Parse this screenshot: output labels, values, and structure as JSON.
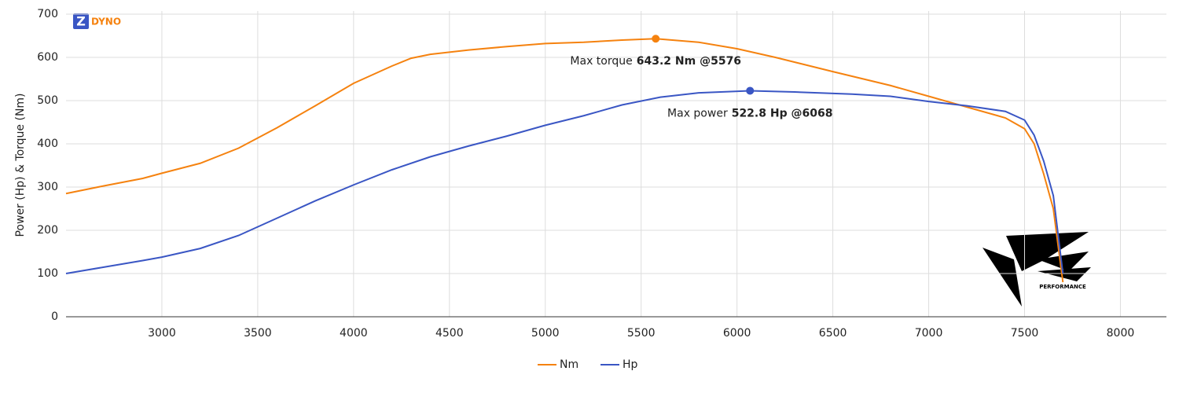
{
  "chart_data": {
    "type": "line",
    "logo": {
      "badge": "Z",
      "name": "DYNO"
    },
    "watermark": "PERFORMANCE",
    "ylabel": "Power (Hp) & Torque (Nm)",
    "xlim": [
      2500,
      8240
    ],
    "xticks": [
      3000,
      3500,
      4000,
      4500,
      5000,
      5500,
      6000,
      6500,
      7000,
      7500,
      8000
    ],
    "ylim": [
      0,
      700
    ],
    "yticks": [
      0,
      100,
      200,
      300,
      400,
      500,
      600,
      700
    ],
    "grid": true,
    "legend": "bottom",
    "series": [
      {
        "name": "Nm",
        "color": "#f5820f",
        "x": [
          2500,
          2700,
          2900,
          3000,
          3200,
          3400,
          3600,
          3800,
          4000,
          4200,
          4300,
          4400,
          4600,
          4800,
          5000,
          5200,
          5400,
          5576,
          5800,
          6000,
          6200,
          6500,
          6800,
          7000,
          7200,
          7400,
          7500,
          7550,
          7600,
          7650,
          7700
        ],
        "values": [
          285,
          303,
          320,
          332,
          355,
          390,
          437,
          488,
          540,
          580,
          598,
          607,
          617,
          625,
          632,
          635,
          640,
          643.2,
          635,
          620,
          600,
          567,
          535,
          510,
          485,
          460,
          435,
          400,
          330,
          250,
          80
        ],
        "annotation": {
          "text": "Max torque",
          "value_text": "643.2 Nm @5576"
        }
      },
      {
        "name": "Hp",
        "color": "#3a56c4",
        "x": [
          2500,
          2700,
          2900,
          3000,
          3200,
          3400,
          3600,
          3800,
          4000,
          4200,
          4400,
          4600,
          4800,
          5000,
          5200,
          5400,
          5600,
          5800,
          6068,
          6300,
          6600,
          6800,
          7000,
          7200,
          7400,
          7500,
          7550,
          7600,
          7650,
          7700
        ],
        "values": [
          100,
          115,
          130,
          138,
          158,
          188,
          228,
          268,
          305,
          340,
          370,
          395,
          418,
          443,
          465,
          490,
          508,
          518,
          522.8,
          520,
          515,
          510,
          498,
          488,
          475,
          455,
          420,
          360,
          280,
          100
        ],
        "annotation": {
          "text": "Max power",
          "value_text": "522.8 Hp @6068"
        }
      }
    ]
  }
}
